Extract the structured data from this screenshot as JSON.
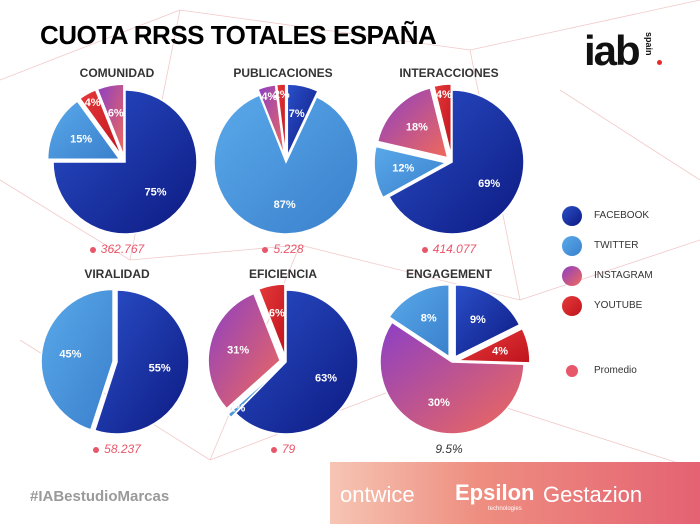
{
  "title": "CUOTA RRSS TOTALES ESPAÑA",
  "logo": {
    "main": "iab",
    "sub": "spain"
  },
  "colors": {
    "facebook": [
      "#2a4fc8",
      "#0d1a82"
    ],
    "twitter": [
      "#5aa9ea",
      "#3a80cc"
    ],
    "instagram": [
      "#8c3fc6",
      "#f06a5a"
    ],
    "youtube": [
      "#e53a3a",
      "#c0141e"
    ],
    "promedio": "#e8566a"
  },
  "legend": [
    {
      "key": "facebook",
      "label": "FACEBOOK"
    },
    {
      "key": "twitter",
      "label": "TWITTER"
    },
    {
      "key": "instagram",
      "label": "INSTAGRAM"
    },
    {
      "key": "youtube",
      "label": "YOUTUBE"
    },
    {
      "key": "promedio",
      "label": "Promedio"
    }
  ],
  "chart_data": [
    {
      "type": "pie",
      "title": "COMUNIDAD",
      "slices": [
        {
          "series": "facebook",
          "value": 75,
          "label": "75%"
        },
        {
          "series": "twitter",
          "value": 15,
          "label": "15%"
        },
        {
          "series": "youtube",
          "value": 4,
          "label": "4%"
        },
        {
          "series": "instagram",
          "value": 6,
          "label": "6%"
        }
      ],
      "promedio": "362.767"
    },
    {
      "type": "pie",
      "title": "PUBLICACIONES",
      "slices": [
        {
          "series": "facebook",
          "value": 7,
          "label": "7%"
        },
        {
          "series": "twitter",
          "value": 87,
          "label": "87%"
        },
        {
          "series": "instagram",
          "value": 4,
          "label": "4%"
        },
        {
          "series": "youtube",
          "value": 2,
          "label": "2%"
        }
      ],
      "promedio": "5.228"
    },
    {
      "type": "pie",
      "title": "INTERACCIONES",
      "slices": [
        {
          "series": "facebook",
          "value": 69,
          "label": "69%"
        },
        {
          "series": "twitter",
          "value": 12,
          "label": "12%"
        },
        {
          "series": "instagram",
          "value": 18,
          "label": "18%"
        },
        {
          "series": "youtube",
          "value": 4,
          "label": "4%"
        }
      ],
      "promedio": "414.077"
    },
    {
      "type": "pie",
      "title": "VIRALIDAD",
      "slices": [
        {
          "series": "facebook",
          "value": 55,
          "label": "55%"
        },
        {
          "series": "twitter",
          "value": 45,
          "label": "45%"
        }
      ],
      "promedio": "58.237"
    },
    {
      "type": "pie",
      "title": "EFICIENCIA",
      "slices": [
        {
          "series": "facebook",
          "value": 63,
          "label": "63%"
        },
        {
          "series": "twitter",
          "value": 1,
          "label": "1%"
        },
        {
          "series": "instagram",
          "value": 31,
          "label": "31%"
        },
        {
          "series": "youtube",
          "value": 6,
          "label": "6%"
        }
      ],
      "promedio": "79"
    },
    {
      "type": "pie",
      "title": "ENGAGEMENT",
      "slices": [
        {
          "series": "facebook",
          "value": 9,
          "label": "9%"
        },
        {
          "series": "youtube",
          "value": 4,
          "label": "4%"
        },
        {
          "series": "instagram",
          "value": 30,
          "label": "30%"
        },
        {
          "series": "twitter",
          "value": 8,
          "label": "8%"
        }
      ],
      "promedio": "9.5%"
    }
  ],
  "footer": {
    "hashtag": "#IABestudioMarcas",
    "brands": [
      "ontwice",
      "Epsilon",
      "Gestazion"
    ],
    "epsilon_sub": "technologies"
  }
}
